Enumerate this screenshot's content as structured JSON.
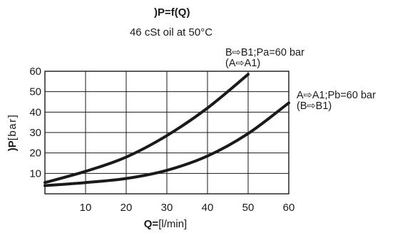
{
  "chart_data": {
    "type": "line",
    "title": " )P=f(Q)",
    "subtitle": "46 cSt oil at 50°C",
    "xlabel_bold": "Q=",
    "xlabel_rest": "[l/min]",
    "ylabel_bold": ")P",
    "ylabel_rest": "[bar]",
    "xlim": [
      0,
      60
    ],
    "ylim": [
      0,
      60
    ],
    "xticks": [
      10,
      20,
      30,
      40,
      50,
      60
    ],
    "yticks": [
      10,
      20,
      30,
      40,
      50,
      60
    ],
    "grid": true,
    "series": [
      {
        "name": "B⇨B1;Pa=60 bar",
        "name_line2": "(A⇨A1)",
        "x": [
          0,
          10,
          20,
          30,
          40,
          50
        ],
        "y": [
          5.5,
          11,
          18,
          28.5,
          42,
          58.5
        ]
      },
      {
        "name": "A⇨A1;Pb=60 bar",
        "name_line2": "(B⇨B1)",
        "x": [
          0,
          10,
          20,
          30,
          40,
          50,
          60
        ],
        "y": [
          4,
          5.5,
          7.5,
          11.5,
          18.5,
          29.5,
          44.5
        ]
      }
    ]
  }
}
